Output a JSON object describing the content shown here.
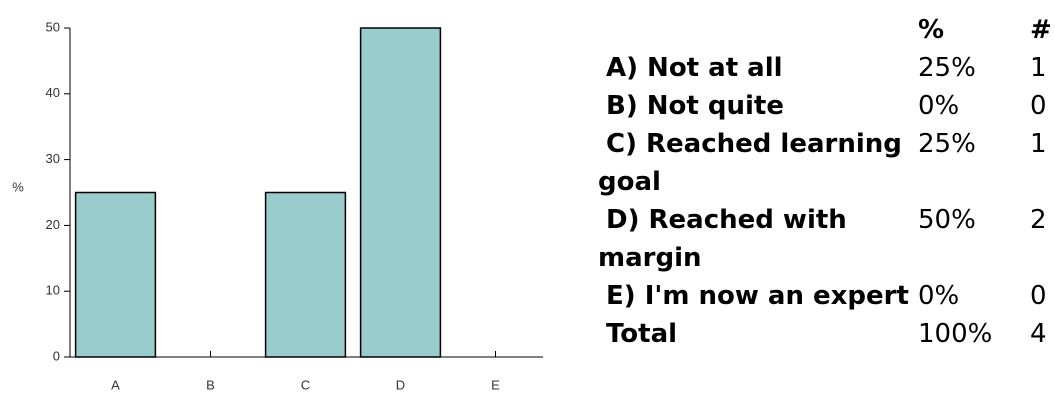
{
  "chart_data": {
    "type": "bar",
    "ylabel": "%",
    "categories": [
      "A",
      "B",
      "C",
      "D",
      "E"
    ],
    "values": [
      25,
      0,
      25,
      50,
      0
    ],
    "color": "#99cccc",
    "ylim": [
      0,
      50
    ],
    "yticks": [
      0,
      10,
      20,
      30,
      40,
      50
    ],
    "grid": false
  },
  "table": {
    "header": [
      "%",
      "#"
    ],
    "rows": [
      [
        "A) Not at all",
        "25%",
        "1"
      ],
      [
        "B) Not quite",
        "0%",
        "0"
      ],
      [
        "C) Reached learning goal",
        "25%",
        "1"
      ],
      [
        "D) Reached with margin",
        "50%",
        "2"
      ],
      [
        "E) I'm now an expert",
        "0%",
        "0"
      ],
      [
        "Total",
        "100%",
        "4"
      ]
    ]
  }
}
